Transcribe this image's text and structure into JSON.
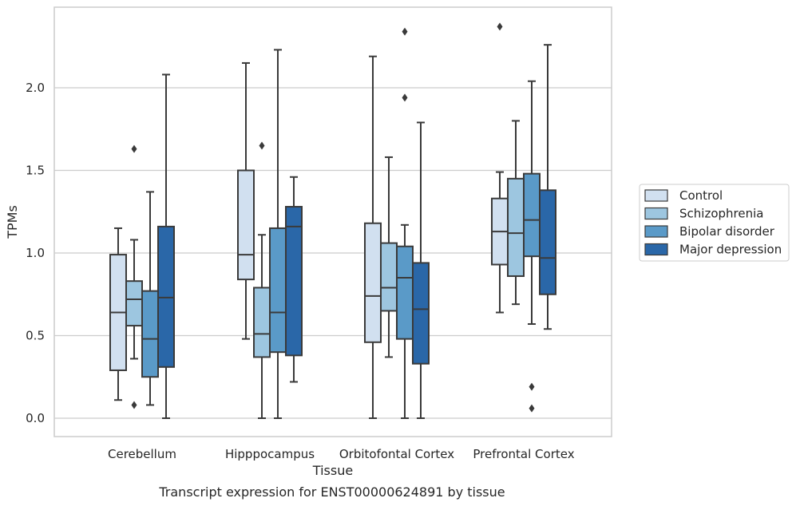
{
  "caption": "Transcript expression for ENST00000624891 by tissue",
  "chart_data": {
    "type": "boxplot",
    "xlabel": "Tissue",
    "ylabel": "TPMs",
    "categories": [
      "Cerebellum",
      "Hipppocampus",
      "Orbitofontal Cortex",
      "Prefrontal Cortex"
    ],
    "ylim": [
      -0.11,
      2.5
    ],
    "yticks": [
      "0.0",
      "0.5",
      "1.0",
      "1.5",
      "2.0"
    ],
    "grid": "horizontal",
    "legend_position": "right",
    "series": [
      {
        "name": "Control",
        "color": "#d1e0f0",
        "boxes": [
          {
            "whislo": 0.11,
            "q1": 0.29,
            "med": 0.64,
            "q3": 0.99,
            "whishi": 1.15,
            "fliers": []
          },
          {
            "whislo": 0.48,
            "q1": 0.84,
            "med": 0.99,
            "q3": 1.5,
            "whishi": 2.15,
            "fliers": []
          },
          {
            "whislo": 0.0,
            "q1": 0.46,
            "med": 0.74,
            "q3": 1.18,
            "whishi": 2.19,
            "fliers": []
          },
          {
            "whislo": 0.64,
            "q1": 0.93,
            "med": 1.13,
            "q3": 1.33,
            "whishi": 1.49,
            "fliers": [
              2.37
            ]
          }
        ]
      },
      {
        "name": "Schizophrenia",
        "color": "#9dc6e0",
        "boxes": [
          {
            "whislo": 0.36,
            "q1": 0.56,
            "med": 0.72,
            "q3": 0.83,
            "whishi": 1.08,
            "fliers": [
              1.63,
              0.08
            ]
          },
          {
            "whislo": 0.0,
            "q1": 0.37,
            "med": 0.51,
            "q3": 0.79,
            "whishi": 1.11,
            "fliers": [
              1.65
            ]
          },
          {
            "whislo": 0.37,
            "q1": 0.65,
            "med": 0.79,
            "q3": 1.06,
            "whishi": 1.58,
            "fliers": []
          },
          {
            "whislo": 0.69,
            "q1": 0.86,
            "med": 1.12,
            "q3": 1.45,
            "whishi": 1.8,
            "fliers": []
          }
        ]
      },
      {
        "name": "Bipolar disorder",
        "color": "#5a9ac8",
        "boxes": [
          {
            "whislo": 0.08,
            "q1": 0.25,
            "med": 0.48,
            "q3": 0.77,
            "whishi": 1.37,
            "fliers": []
          },
          {
            "whislo": 0.0,
            "q1": 0.4,
            "med": 0.64,
            "q3": 1.15,
            "whishi": 2.23,
            "fliers": []
          },
          {
            "whislo": 0.0,
            "q1": 0.48,
            "med": 0.85,
            "q3": 1.04,
            "whishi": 1.17,
            "fliers": [
              2.34,
              1.94
            ]
          },
          {
            "whislo": 0.57,
            "q1": 0.98,
            "med": 1.2,
            "q3": 1.48,
            "whishi": 2.04,
            "fliers": [
              0.19,
              0.06
            ]
          }
        ]
      },
      {
        "name": "Major depression",
        "color": "#2a67a8",
        "boxes": [
          {
            "whislo": 0.0,
            "q1": 0.31,
            "med": 0.73,
            "q3": 1.16,
            "whishi": 2.08,
            "fliers": []
          },
          {
            "whislo": 0.22,
            "q1": 0.38,
            "med": 1.16,
            "q3": 1.28,
            "whishi": 1.46,
            "fliers": []
          },
          {
            "whislo": 0.0,
            "q1": 0.33,
            "med": 0.66,
            "q3": 0.94,
            "whishi": 1.79,
            "fliers": []
          },
          {
            "whislo": 0.54,
            "q1": 0.75,
            "med": 0.97,
            "q3": 1.38,
            "whishi": 2.26,
            "fliers": []
          }
        ]
      }
    ]
  }
}
